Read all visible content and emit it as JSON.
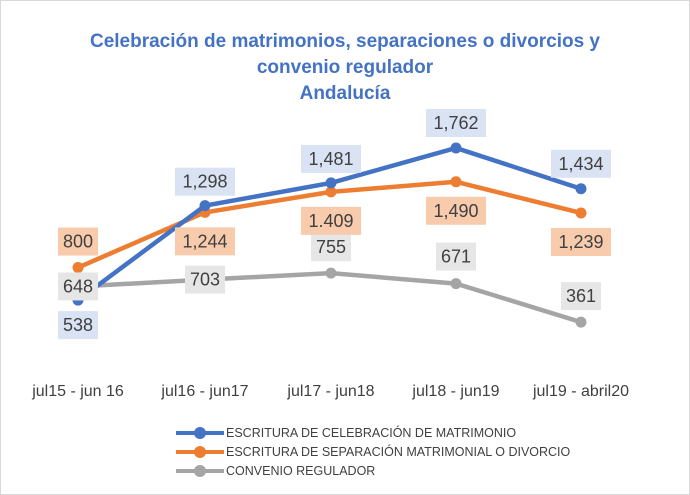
{
  "chart_data": {
    "type": "line",
    "title": [
      "Celebración de matrimonios, separaciones o divorcios y",
      "convenio regulador",
      "Andalucía"
    ],
    "categories": [
      "jul15 - jun 16",
      "jul16 - jun17",
      "jul17 - jun18",
      "jul18 - jun19",
      "jul19 - abril20"
    ],
    "series": [
      {
        "name": "ESCRITURA DE CELEBRACIÓN DE MATRIMONIO",
        "color": "#4472c4",
        "label_bg": "#dae3f3",
        "values": [
          538,
          1298,
          1481,
          1762,
          1434
        ],
        "labels": [
          "538",
          "1,298",
          "1,481",
          "1,762",
          "1,434"
        ]
      },
      {
        "name": "ESCRITURA DE SEPARACIÓN MATRIMONIAL O DIVORCIO",
        "color": "#ed7d31",
        "label_bg": "#f8cbad",
        "values": [
          800,
          1244,
          1409,
          1490,
          1239
        ],
        "labels": [
          "800",
          "1,244",
          "1.409",
          "1,490",
          "1,239"
        ]
      },
      {
        "name": "CONVENIO REGULADOR",
        "color": "#a5a5a5",
        "label_bg": "#e7e6e6",
        "values": [
          648,
          703,
          755,
          671,
          361
        ],
        "labels": [
          "648",
          "703",
          "755",
          "671",
          "361"
        ]
      }
    ],
    "legend_position": "bottom",
    "grid": false
  }
}
